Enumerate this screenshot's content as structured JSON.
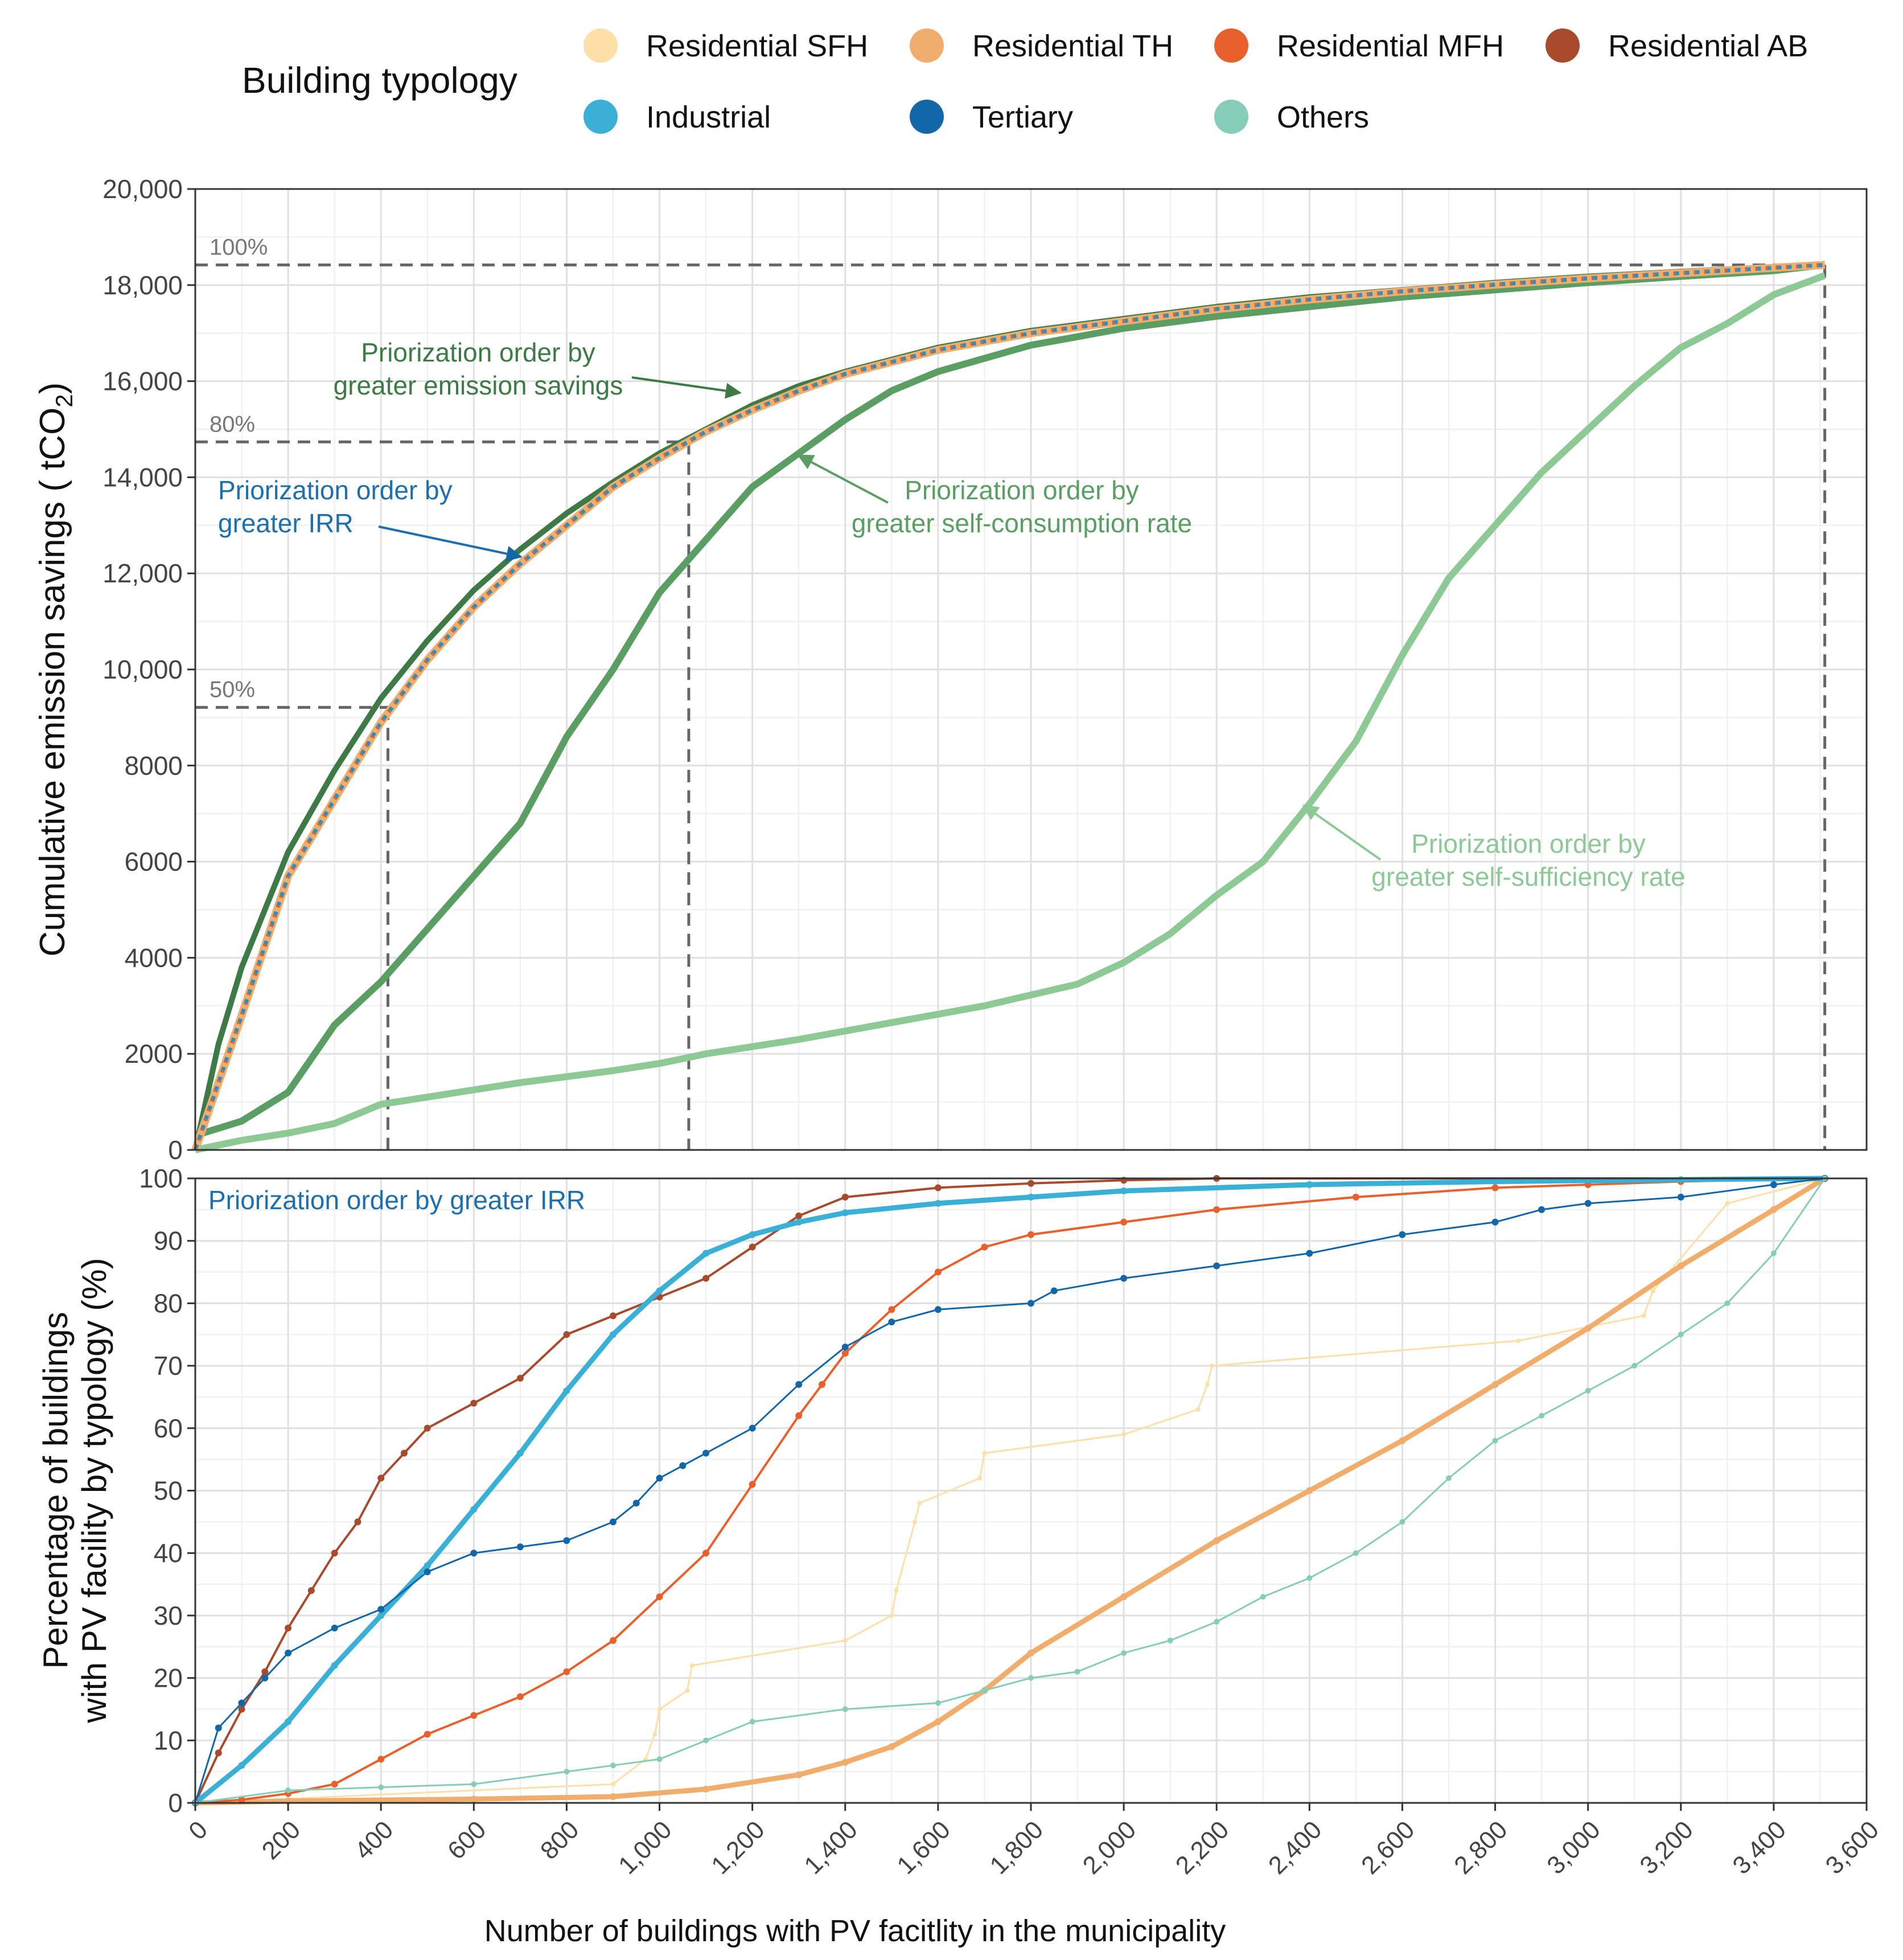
{
  "legend": {
    "title": "Building typology",
    "items": [
      {
        "label": "Residential SFH",
        "color": "#fde0a8"
      },
      {
        "label": "Residential TH",
        "color": "#f0ad6b"
      },
      {
        "label": "Residential MFH",
        "color": "#e8612c"
      },
      {
        "label": "Residential AB",
        "color": "#a84b2c"
      },
      {
        "label": "Industrial",
        "color": "#3ab0d6"
      },
      {
        "label": "Tertiary",
        "color": "#1267a8"
      },
      {
        "label": "Others",
        "color": "#86cdb9"
      }
    ]
  },
  "chart_data": [
    {
      "type": "line",
      "title": "",
      "ylabel_main": "Cumulative emission savings ( tCO",
      "ylabel_sub": "2",
      "ylabel_end": ")",
      "xlim": [
        0,
        3600
      ],
      "ylim": [
        0,
        20000
      ],
      "y_ticks": [
        0,
        2000,
        4000,
        6000,
        8000,
        10000,
        12000,
        14000,
        16000,
        18000,
        20000
      ],
      "y_tick_labels": [
        "0",
        "2000",
        "4000",
        "6000",
        "8000",
        "10,000",
        "12,000",
        "14,000",
        "16,000",
        "18,000",
        "20,000"
      ],
      "reference_lines": [
        {
          "label": "100%",
          "y": 18420,
          "x": 3510
        },
        {
          "label": "80%",
          "y": 14736,
          "x": 1063
        },
        {
          "label": "50%",
          "y": 9210,
          "x": 415
        }
      ],
      "series": [
        {
          "name": "emission_savings",
          "color": "#3d7a45",
          "annotation": [
            "Priorization order by",
            "greater emission savings"
          ],
          "x": [
            0,
            50,
            100,
            200,
            300,
            400,
            500,
            600,
            700,
            800,
            900,
            1000,
            1100,
            1200,
            1300,
            1400,
            1600,
            1800,
            2000,
            2200,
            2400,
            2600,
            2800,
            3000,
            3200,
            3400,
            3510
          ],
          "y": [
            0,
            2200,
            3800,
            6200,
            7900,
            9400,
            10600,
            11650,
            12500,
            13250,
            13900,
            14500,
            15000,
            15500,
            15900,
            16200,
            16700,
            17050,
            17300,
            17550,
            17750,
            17900,
            18050,
            18180,
            18280,
            18380,
            18420
          ]
        },
        {
          "name": "irr",
          "color": "#2a8fc2",
          "annotation": [
            "Priorization order by",
            "greater IRR"
          ],
          "x": [
            0,
            50,
            100,
            200,
            300,
            400,
            500,
            600,
            700,
            800,
            900,
            1000,
            1100,
            1200,
            1300,
            1400,
            1600,
            1800,
            2000,
            2200,
            2400,
            2600,
            2800,
            3000,
            3200,
            3400,
            3510
          ],
          "y": [
            0,
            1400,
            2800,
            5700,
            7300,
            8900,
            10200,
            11300,
            12200,
            13000,
            13800,
            14400,
            14950,
            15400,
            15800,
            16150,
            16650,
            17000,
            17250,
            17500,
            17700,
            17870,
            18010,
            18140,
            18250,
            18360,
            18420
          ]
        },
        {
          "name": "self_consumption",
          "color": "#5a9e64",
          "annotation": [
            "Priorization order by",
            "greater self-consumption rate"
          ],
          "x": [
            0,
            100,
            200,
            300,
            400,
            500,
            600,
            700,
            800,
            900,
            1000,
            1100,
            1200,
            1300,
            1400,
            1500,
            1600,
            1800,
            2000,
            2200,
            2400,
            2600,
            2800,
            3000,
            3200,
            3400,
            3510
          ],
          "y": [
            300,
            600,
            1200,
            2600,
            3500,
            4600,
            5700,
            6800,
            8600,
            10000,
            11600,
            12700,
            13800,
            14500,
            15200,
            15800,
            16200,
            16750,
            17100,
            17350,
            17550,
            17750,
            17900,
            18050,
            18180,
            18300,
            18420
          ]
        },
        {
          "name": "self_sufficiency",
          "color": "#8cc995",
          "annotation": [
            "Priorization order by",
            "greater self-sufficiency rate"
          ],
          "x": [
            0,
            100,
            200,
            300,
            400,
            500,
            700,
            900,
            1000,
            1100,
            1300,
            1500,
            1700,
            1900,
            2000,
            2100,
            2200,
            2300,
            2400,
            2500,
            2600,
            2700,
            2800,
            2900,
            3000,
            3100,
            3200,
            3300,
            3400,
            3510
          ],
          "y": [
            0,
            200,
            350,
            550,
            950,
            1100,
            1400,
            1650,
            1800,
            2000,
            2300,
            2650,
            3000,
            3450,
            3900,
            4500,
            5300,
            6000,
            7200,
            8500,
            10300,
            11900,
            13000,
            14100,
            15000,
            15900,
            16700,
            17200,
            17800,
            18200
          ]
        }
      ]
    },
    {
      "type": "line",
      "title": "Priorization order by greater IRR",
      "xlabel": "Number of buildings with PV facitlity in the municipality",
      "ylabel": [
        "Percentage of buildings",
        "with PV facility by typology (%)"
      ],
      "xlim": [
        0,
        3600
      ],
      "ylim": [
        0,
        100
      ],
      "x_ticks": [
        0,
        200,
        400,
        600,
        800,
        1000,
        1200,
        1400,
        1600,
        1800,
        2000,
        2200,
        2400,
        2600,
        2800,
        3000,
        3200,
        3400,
        3600
      ],
      "x_tick_labels": [
        "0",
        "200",
        "400",
        "600",
        "800",
        "1,000",
        "1,200",
        "1,400",
        "1,600",
        "1,800",
        "2,000",
        "2,200",
        "2,400",
        "2,600",
        "2,800",
        "3,000",
        "3,200",
        "3,400",
        "3,600"
      ],
      "y_ticks": [
        0,
        10,
        20,
        30,
        40,
        50,
        60,
        70,
        80,
        90,
        100
      ],
      "y_tick_labels": [
        "0",
        "10",
        "20",
        "30",
        "40",
        "50",
        "60",
        "70",
        "80",
        "90",
        "100"
      ],
      "series": [
        {
          "name": "Residential SFH",
          "color": "#fde0a8",
          "x": [
            0,
            900,
            970,
            990,
            1000,
            1060,
            1070,
            1400,
            1500,
            1510,
            1550,
            1560,
            1690,
            1700,
            2000,
            2160,
            2180,
            2190,
            2850,
            3120,
            3140,
            3300,
            3510
          ],
          "y": [
            0,
            3,
            7,
            11,
            15,
            18,
            22,
            26,
            30,
            34,
            45,
            48,
            52,
            56,
            59,
            63,
            67,
            70,
            74,
            78,
            82,
            96,
            100
          ]
        },
        {
          "name": "Residential TH",
          "color": "#f0ad6b",
          "x": [
            0,
            200,
            600,
            900,
            1100,
            1300,
            1400,
            1500,
            1600,
            1700,
            1800,
            2000,
            2200,
            2400,
            2600,
            2800,
            3000,
            3200,
            3400,
            3510
          ],
          "y": [
            0,
            0.3,
            0.6,
            1,
            2.2,
            4.5,
            6.5,
            9,
            13,
            18,
            24,
            33,
            42,
            50,
            58,
            67,
            76,
            86,
            95,
            100
          ]
        },
        {
          "name": "Residential MFH",
          "color": "#e8612c",
          "x": [
            0,
            100,
            200,
            300,
            400,
            500,
            600,
            700,
            800,
            900,
            1000,
            1100,
            1200,
            1300,
            1350,
            1400,
            1500,
            1600,
            1700,
            1800,
            2000,
            2200,
            2500,
            2800,
            3000,
            3200,
            3510
          ],
          "y": [
            0,
            0.5,
            1.5,
            3,
            7,
            11,
            14,
            17,
            21,
            26,
            33,
            40,
            51,
            62,
            67,
            72,
            79,
            85,
            89,
            91,
            93,
            95,
            97,
            98.5,
            99,
            99.5,
            100
          ]
        },
        {
          "name": "Residential AB",
          "color": "#a84b2c",
          "x": [
            0,
            50,
            100,
            150,
            200,
            250,
            300,
            350,
            400,
            450,
            500,
            600,
            700,
            800,
            900,
            1000,
            1100,
            1200,
            1300,
            1400,
            1600,
            1800,
            2000,
            2200,
            3510
          ],
          "y": [
            0,
            8,
            15,
            21,
            28,
            34,
            40,
            45,
            52,
            56,
            60,
            64,
            68,
            75,
            78,
            81,
            84,
            89,
            94,
            97,
            98.5,
            99.2,
            99.7,
            100,
            100
          ]
        },
        {
          "name": "Industrial",
          "color": "#3ab0d6",
          "x": [
            0,
            100,
            200,
            300,
            400,
            500,
            600,
            700,
            800,
            900,
            1000,
            1100,
            1200,
            1300,
            1400,
            1600,
            1800,
            2000,
            2400,
            2800,
            3200,
            3510
          ],
          "y": [
            0,
            6,
            13,
            22,
            30,
            38,
            47,
            56,
            66,
            75,
            82,
            88,
            91,
            93,
            94.5,
            96,
            97,
            98,
            99,
            99.5,
            99.8,
            100
          ]
        },
        {
          "name": "Tertiary",
          "color": "#1267a8",
          "x": [
            0,
            50,
            100,
            150,
            200,
            300,
            400,
            500,
            600,
            700,
            800,
            900,
            950,
            1000,
            1050,
            1100,
            1200,
            1300,
            1400,
            1500,
            1600,
            1800,
            1850,
            2000,
            2200,
            2400,
            2600,
            2800,
            2900,
            3000,
            3200,
            3400,
            3510
          ],
          "y": [
            0,
            12,
            16,
            20,
            24,
            28,
            31,
            37,
            40,
            41,
            42,
            45,
            48,
            52,
            54,
            56,
            60,
            67,
            73,
            77,
            79,
            80,
            82,
            84,
            86,
            88,
            91,
            93,
            95,
            96,
            97,
            99,
            100
          ]
        },
        {
          "name": "Others",
          "color": "#86cdb9",
          "x": [
            0,
            200,
            400,
            600,
            800,
            900,
            1000,
            1100,
            1200,
            1400,
            1600,
            1700,
            1800,
            1900,
            2000,
            2100,
            2200,
            2300,
            2400,
            2500,
            2600,
            2700,
            2800,
            2900,
            3000,
            3100,
            3200,
            3300,
            3400,
            3510
          ],
          "y": [
            0,
            2,
            2.5,
            3,
            5,
            6,
            7,
            10,
            13,
            15,
            16,
            18,
            20,
            21,
            24,
            26,
            29,
            33,
            36,
            40,
            45,
            52,
            58,
            62,
            66,
            70,
            75,
            80,
            88,
            100
          ]
        }
      ]
    }
  ]
}
